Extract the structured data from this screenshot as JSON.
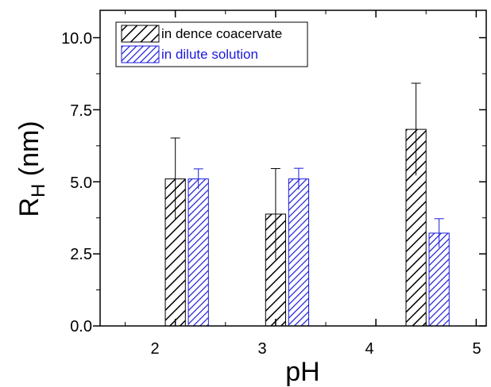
{
  "chart_data": {
    "type": "bar",
    "title": "",
    "xlabel": "pH",
    "ylabel": {
      "main": "R",
      "sub": "H",
      "unit": " (nm)"
    },
    "xlim": [
      1.25,
      5.1
    ],
    "ylim": [
      0,
      10.95
    ],
    "xticks": [
      2,
      3,
      4,
      5
    ],
    "xtick_labels": [
      "2",
      "3",
      "4",
      "5"
    ],
    "yticks": [
      0,
      2.5,
      5,
      7.5,
      10
    ],
    "ytick_labels": [
      "0.0",
      "2.5",
      "5.0",
      "7.5",
      "10.0"
    ],
    "grid": false,
    "legend_position": "top-left",
    "series": [
      {
        "name": "in dence coacervate",
        "color": "#000000",
        "pattern": "diagonal-hatch",
        "x": [
          2,
          3,
          4.4
        ],
        "values": [
          5.1,
          3.88,
          6.82
        ],
        "error": [
          1.42,
          1.58,
          1.6
        ]
      },
      {
        "name": "in dilute solution",
        "color": "#1a1adb",
        "pattern": "diagonal-hatch",
        "x": [
          2.23,
          3.23,
          4.63
        ],
        "values": [
          5.1,
          5.1,
          3.22
        ],
        "error": [
          0.35,
          0.37,
          0.5
        ]
      }
    ]
  }
}
